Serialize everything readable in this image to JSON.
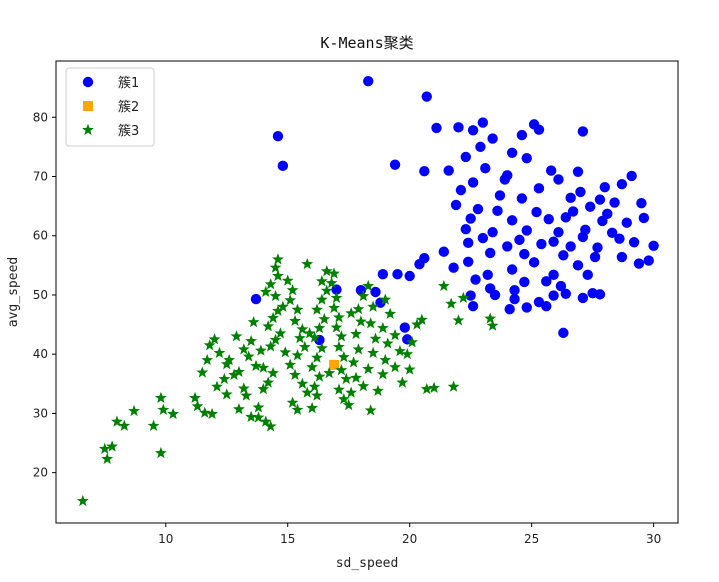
{
  "chart_data": {
    "type": "scatter",
    "title": "K-Means聚类",
    "xlabel": "sd_speed",
    "ylabel": "avg_speed",
    "xlim": [
      5.5,
      31.0
    ],
    "ylim": [
      11.5,
      89.5
    ],
    "xticks": [
      10,
      15,
      20,
      25,
      30
    ],
    "yticks": [
      20,
      30,
      40,
      50,
      60,
      70,
      80
    ],
    "legend_position": "upper-left",
    "series": [
      {
        "name": "簇1",
        "marker": "circle",
        "color": "#0000ff",
        "points": [
          [
            18.3,
            86.1
          ],
          [
            20.7,
            83.5
          ],
          [
            14.6,
            76.8
          ],
          [
            14.8,
            71.8
          ],
          [
            19.4,
            72.0
          ],
          [
            21.1,
            78.2
          ],
          [
            22.0,
            78.3
          ],
          [
            22.6,
            77.8
          ],
          [
            23.0,
            79.1
          ],
          [
            23.4,
            76.4
          ],
          [
            24.6,
            77.0
          ],
          [
            25.1,
            78.8
          ],
          [
            25.3,
            77.9
          ],
          [
            27.1,
            77.6
          ],
          [
            22.9,
            75.0
          ],
          [
            24.2,
            74.0
          ],
          [
            24.8,
            73.1
          ],
          [
            22.3,
            73.3
          ],
          [
            20.6,
            70.9
          ],
          [
            21.6,
            71.0
          ],
          [
            23.1,
            71.4
          ],
          [
            24.0,
            70.2
          ],
          [
            25.8,
            71.0
          ],
          [
            26.9,
            70.8
          ],
          [
            29.1,
            70.1
          ],
          [
            22.6,
            69.0
          ],
          [
            23.9,
            69.5
          ],
          [
            25.3,
            68.0
          ],
          [
            26.1,
            69.5
          ],
          [
            27.0,
            67.4
          ],
          [
            28.0,
            68.2
          ],
          [
            28.7,
            68.7
          ],
          [
            22.1,
            67.7
          ],
          [
            23.7,
            66.8
          ],
          [
            24.6,
            66.3
          ],
          [
            26.6,
            66.4
          ],
          [
            27.8,
            66.1
          ],
          [
            28.4,
            65.6
          ],
          [
            29.5,
            65.5
          ],
          [
            21.9,
            65.2
          ],
          [
            22.8,
            64.5
          ],
          [
            23.6,
            64.2
          ],
          [
            25.2,
            64.0
          ],
          [
            26.7,
            64.1
          ],
          [
            27.4,
            64.9
          ],
          [
            28.1,
            63.7
          ],
          [
            29.6,
            63.0
          ],
          [
            22.5,
            62.9
          ],
          [
            24.2,
            62.6
          ],
          [
            25.7,
            62.8
          ],
          [
            26.4,
            63.1
          ],
          [
            27.9,
            62.5
          ],
          [
            28.9,
            62.2
          ],
          [
            22.3,
            61.1
          ],
          [
            23.4,
            60.6
          ],
          [
            24.8,
            60.9
          ],
          [
            26.1,
            60.6
          ],
          [
            27.2,
            61.0
          ],
          [
            28.3,
            60.5
          ],
          [
            23.0,
            59.6
          ],
          [
            24.5,
            59.3
          ],
          [
            25.9,
            59.0
          ],
          [
            27.1,
            59.8
          ],
          [
            28.6,
            59.5
          ],
          [
            22.4,
            58.8
          ],
          [
            24.0,
            58.2
          ],
          [
            25.4,
            58.6
          ],
          [
            26.6,
            58.2
          ],
          [
            27.7,
            58.0
          ],
          [
            29.2,
            58.9
          ],
          [
            30.0,
            58.3
          ],
          [
            21.4,
            57.3
          ],
          [
            23.3,
            57.1
          ],
          [
            24.7,
            56.9
          ],
          [
            26.3,
            56.7
          ],
          [
            27.6,
            56.4
          ],
          [
            28.7,
            56.4
          ],
          [
            20.6,
            56.2
          ],
          [
            22.4,
            55.6
          ],
          [
            25.1,
            55.5
          ],
          [
            26.9,
            55.0
          ],
          [
            29.4,
            55.3
          ],
          [
            29.8,
            55.8
          ],
          [
            20.4,
            55.2
          ],
          [
            21.8,
            54.6
          ],
          [
            24.2,
            54.3
          ],
          [
            23.2,
            53.4
          ],
          [
            25.9,
            53.4
          ],
          [
            27.3,
            53.4
          ],
          [
            22.7,
            52.6
          ],
          [
            24.7,
            52.2
          ],
          [
            25.6,
            52.3
          ],
          [
            26.2,
            51.5
          ],
          [
            23.3,
            51.1
          ],
          [
            24.3,
            50.8
          ],
          [
            25.9,
            49.9
          ],
          [
            26.4,
            50.2
          ],
          [
            27.1,
            49.5
          ],
          [
            27.5,
            50.3
          ],
          [
            27.8,
            50.1
          ],
          [
            22.5,
            49.9
          ],
          [
            23.5,
            50.0
          ],
          [
            24.3,
            49.3
          ],
          [
            25.3,
            48.8
          ],
          [
            22.6,
            48.1
          ],
          [
            24.1,
            47.6
          ],
          [
            24.8,
            47.9
          ],
          [
            25.6,
            48.1
          ],
          [
            19.5,
            53.5
          ],
          [
            18.6,
            50.5
          ],
          [
            18.0,
            50.8
          ],
          [
            18.8,
            48.7
          ],
          [
            19.8,
            44.5
          ],
          [
            19.9,
            42.5
          ],
          [
            16.3,
            42.4
          ],
          [
            26.3,
            43.6
          ],
          [
            13.7,
            49.3
          ],
          [
            17.0,
            50.9
          ],
          [
            18.9,
            53.5
          ],
          [
            20.0,
            53.2
          ]
        ]
      },
      {
        "name": "簇2",
        "marker": "square",
        "color": "#ffa500",
        "points": [
          [
            16.9,
            38.2
          ]
        ]
      },
      {
        "name": "簇3",
        "marker": "star",
        "color": "#008000",
        "points": [
          [
            6.6,
            15.2
          ],
          [
            7.6,
            22.3
          ],
          [
            7.5,
            24.0
          ],
          [
            7.8,
            24.4
          ],
          [
            8.0,
            28.6
          ],
          [
            8.3,
            27.9
          ],
          [
            8.7,
            30.4
          ],
          [
            9.5,
            27.9
          ],
          [
            9.8,
            32.6
          ],
          [
            9.9,
            30.6
          ],
          [
            9.8,
            23.3
          ],
          [
            10.3,
            29.9
          ],
          [
            11.3,
            31.2
          ],
          [
            11.2,
            32.6
          ],
          [
            11.6,
            30.1
          ],
          [
            11.9,
            29.9
          ],
          [
            12.1,
            34.5
          ],
          [
            12.5,
            33.2
          ],
          [
            12.4,
            35.8
          ],
          [
            11.7,
            39.0
          ],
          [
            11.8,
            41.5
          ],
          [
            12.0,
            42.5
          ],
          [
            12.6,
            39.0
          ],
          [
            12.5,
            38.3
          ],
          [
            12.8,
            36.5
          ],
          [
            13.0,
            37.0
          ],
          [
            13.2,
            34.2
          ],
          [
            13.3,
            33.0
          ],
          [
            13.0,
            30.7
          ],
          [
            13.5,
            29.4
          ],
          [
            13.8,
            29.3
          ],
          [
            14.1,
            28.6
          ],
          [
            14.3,
            27.8
          ],
          [
            13.8,
            31.0
          ],
          [
            14.0,
            34.1
          ],
          [
            14.2,
            35.2
          ],
          [
            14.4,
            36.8
          ],
          [
            13.7,
            38.0
          ],
          [
            13.4,
            39.6
          ],
          [
            13.9,
            40.6
          ],
          [
            14.3,
            41.3
          ],
          [
            14.5,
            42.4
          ],
          [
            14.7,
            43.5
          ],
          [
            14.2,
            44.7
          ],
          [
            14.4,
            46.1
          ],
          [
            14.6,
            47.3
          ],
          [
            14.8,
            48.0
          ],
          [
            14.5,
            49.8
          ],
          [
            14.1,
            50.5
          ],
          [
            14.3,
            51.8
          ],
          [
            14.6,
            53.2
          ],
          [
            14.5,
            54.6
          ],
          [
            14.6,
            56.0
          ],
          [
            15.0,
            52.4
          ],
          [
            15.2,
            50.8
          ],
          [
            15.1,
            49.1
          ],
          [
            15.4,
            47.5
          ],
          [
            15.3,
            45.6
          ],
          [
            15.6,
            44.2
          ],
          [
            15.5,
            42.7
          ],
          [
            15.7,
            41.2
          ],
          [
            15.4,
            39.8
          ],
          [
            15.1,
            38.2
          ],
          [
            15.3,
            36.5
          ],
          [
            15.6,
            35.0
          ],
          [
            15.8,
            33.5
          ],
          [
            15.2,
            31.8
          ],
          [
            15.4,
            30.6
          ],
          [
            16.0,
            30.9
          ],
          [
            16.2,
            33.0
          ],
          [
            16.1,
            34.5
          ],
          [
            16.3,
            36.2
          ],
          [
            16.0,
            37.8
          ],
          [
            16.2,
            39.4
          ],
          [
            16.4,
            41.0
          ],
          [
            16.1,
            42.8
          ],
          [
            16.3,
            44.4
          ],
          [
            16.5,
            45.9
          ],
          [
            16.2,
            47.5
          ],
          [
            16.4,
            49.2
          ],
          [
            16.6,
            50.7
          ],
          [
            16.4,
            52.3
          ],
          [
            16.6,
            54.0
          ],
          [
            16.8,
            52.0
          ],
          [
            17.0,
            49.5
          ],
          [
            16.9,
            47.8
          ],
          [
            17.1,
            46.2
          ],
          [
            17.0,
            44.5
          ],
          [
            17.2,
            43.0
          ],
          [
            17.1,
            41.2
          ],
          [
            17.3,
            39.5
          ],
          [
            17.2,
            37.3
          ],
          [
            17.4,
            35.8
          ],
          [
            17.1,
            34.0
          ],
          [
            17.3,
            32.4
          ],
          [
            17.6,
            33.5
          ],
          [
            17.8,
            36.0
          ],
          [
            17.7,
            38.6
          ],
          [
            17.9,
            40.8
          ],
          [
            17.8,
            43.4
          ],
          [
            18.0,
            45.5
          ],
          [
            17.9,
            47.6
          ],
          [
            18.1,
            49.8
          ],
          [
            18.3,
            51.5
          ],
          [
            18.5,
            48.0
          ],
          [
            18.4,
            45.2
          ],
          [
            18.6,
            42.6
          ],
          [
            18.5,
            40.2
          ],
          [
            18.3,
            37.5
          ],
          [
            18.1,
            34.6
          ],
          [
            18.4,
            30.5
          ],
          [
            18.7,
            33.8
          ],
          [
            18.9,
            36.6
          ],
          [
            19.0,
            39.0
          ],
          [
            19.1,
            41.8
          ],
          [
            18.9,
            44.4
          ],
          [
            19.2,
            46.8
          ],
          [
            19.0,
            49.2
          ],
          [
            19.4,
            43.2
          ],
          [
            19.6,
            40.5
          ],
          [
            19.4,
            37.8
          ],
          [
            19.7,
            35.2
          ],
          [
            20.0,
            37.4
          ],
          [
            19.9,
            40.0
          ],
          [
            20.1,
            42.0
          ],
          [
            20.3,
            45.0
          ],
          [
            20.5,
            45.8
          ],
          [
            20.7,
            34.1
          ],
          [
            21.0,
            34.3
          ],
          [
            21.4,
            51.5
          ],
          [
            21.7,
            48.5
          ],
          [
            21.8,
            34.5
          ],
          [
            22.0,
            45.7
          ],
          [
            22.2,
            49.5
          ],
          [
            23.3,
            46.0
          ],
          [
            23.4,
            44.8
          ],
          [
            15.8,
            55.2
          ],
          [
            16.9,
            53.6
          ],
          [
            13.2,
            40.8
          ],
          [
            12.9,
            43.0
          ],
          [
            13.6,
            45.4
          ],
          [
            16.7,
            36.8
          ],
          [
            17.5,
            31.4
          ],
          [
            14.9,
            40.3
          ],
          [
            15.9,
            43.5
          ],
          [
            13.5,
            42.2
          ],
          [
            14.0,
            37.7
          ],
          [
            12.2,
            40.2
          ],
          [
            11.5,
            36.9
          ],
          [
            17.6,
            46.9
          ]
        ]
      }
    ]
  }
}
